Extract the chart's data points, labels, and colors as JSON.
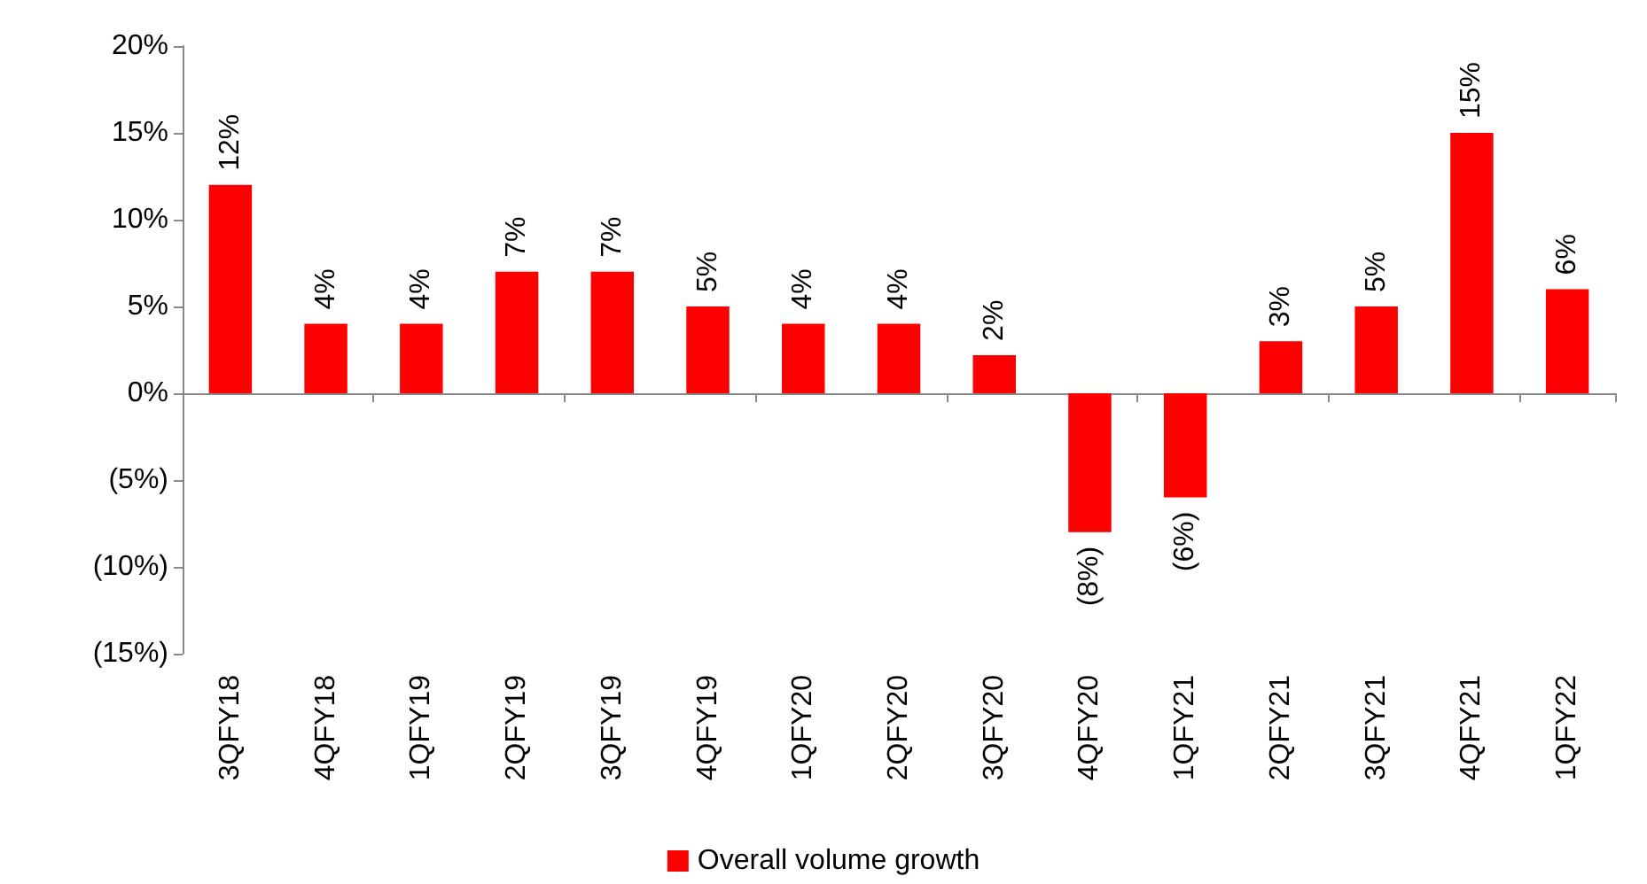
{
  "chart_data": {
    "type": "bar",
    "categories": [
      "3QFY18",
      "4QFY18",
      "1QFY19",
      "2QFY19",
      "3QFY19",
      "4QFY19",
      "1QFY20",
      "2QFY20",
      "3QFY20",
      "4QFY20",
      "1QFY21",
      "2QFY21",
      "3QFY21",
      "4QFY21",
      "1QFY22"
    ],
    "series": [
      {
        "name": "Overall volume growth",
        "color": "#ff0000",
        "values": [
          12,
          4,
          4,
          7,
          7,
          5,
          4,
          4,
          2.2,
          -8,
          -6,
          3,
          5,
          15,
          6
        ],
        "value_labels": [
          "12%",
          "4%",
          "4%",
          "7%",
          "7%",
          "5%",
          "4%",
          "4%",
          "2%",
          "(8%)",
          "(6%)",
          "3%",
          "5%",
          "15%",
          "6%"
        ]
      }
    ],
    "ylim": [
      -15,
      20
    ],
    "yticks": [
      {
        "value": -15,
        "label": "(15%)"
      },
      {
        "value": -10,
        "label": "(10%)"
      },
      {
        "value": -5,
        "label": "(5%)"
      },
      {
        "value": 0,
        "label": "0%"
      },
      {
        "value": 5,
        "label": "5%"
      },
      {
        "value": 10,
        "label": "10%"
      },
      {
        "value": 15,
        "label": "15%"
      },
      {
        "value": 20,
        "label": "20%"
      }
    ],
    "legend": "bottom"
  }
}
